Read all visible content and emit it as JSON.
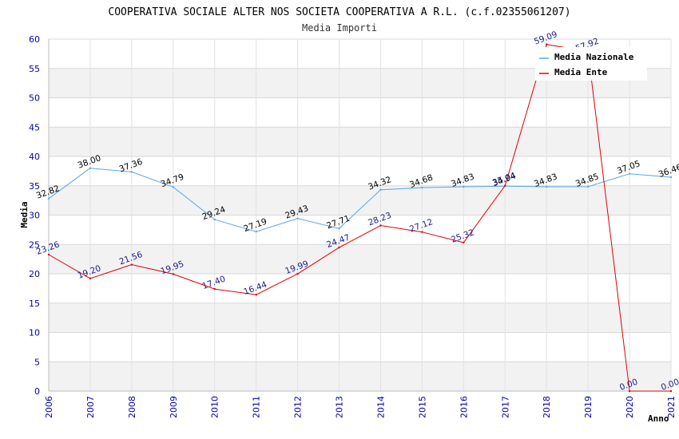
{
  "chart_data": {
    "type": "line",
    "title": "COOPERATIVA SOCIALE ALTER NOS SOCIETA COOPERATIVA A R.L. (c.f.02355061207)",
    "subtitle": "Media Importi",
    "xlabel": "Anno",
    "ylabel": "Media",
    "ylim": [
      0,
      60
    ],
    "yticks": [
      0,
      5,
      10,
      15,
      20,
      25,
      30,
      35,
      40,
      45,
      50,
      55,
      60
    ],
    "categories": [
      "2006",
      "2007",
      "2008",
      "2009",
      "2010",
      "2011",
      "2012",
      "2013",
      "2014",
      "2015",
      "2016",
      "2017",
      "2018",
      "2019",
      "2020",
      "2021"
    ],
    "legend_position": "top-right",
    "series": [
      {
        "name": "Media Nazionale",
        "color": "#5aa6e6",
        "values": [
          32.82,
          38.0,
          37.36,
          34.79,
          29.24,
          27.19,
          29.43,
          27.71,
          34.32,
          34.68,
          34.83,
          34.94,
          34.83,
          34.85,
          37.05,
          36.46
        ],
        "labels": [
          "32.82",
          "38.00",
          "37.36",
          "34.79",
          "29.24",
          "27.19",
          "29.43",
          "27.71",
          "34.32",
          "34.68",
          "34.83",
          "34.94",
          "34.83",
          "34.85",
          "37.05",
          "36.46"
        ]
      },
      {
        "name": "Media Ente",
        "color": "#e00000",
        "values": [
          23.26,
          19.2,
          21.56,
          19.95,
          17.4,
          16.44,
          19.99,
          24.47,
          28.23,
          27.12,
          25.32,
          35.04,
          59.09,
          57.92,
          0.0,
          0.0
        ],
        "labels": [
          "23.26",
          "19.20",
          "21.56",
          "19.95",
          "17.40",
          "16.44",
          "19.99",
          "24.47",
          "28.23",
          "27.12",
          "25.32",
          "35.04",
          "59.09",
          "57.92",
          "0.00",
          "0.00"
        ]
      }
    ]
  }
}
